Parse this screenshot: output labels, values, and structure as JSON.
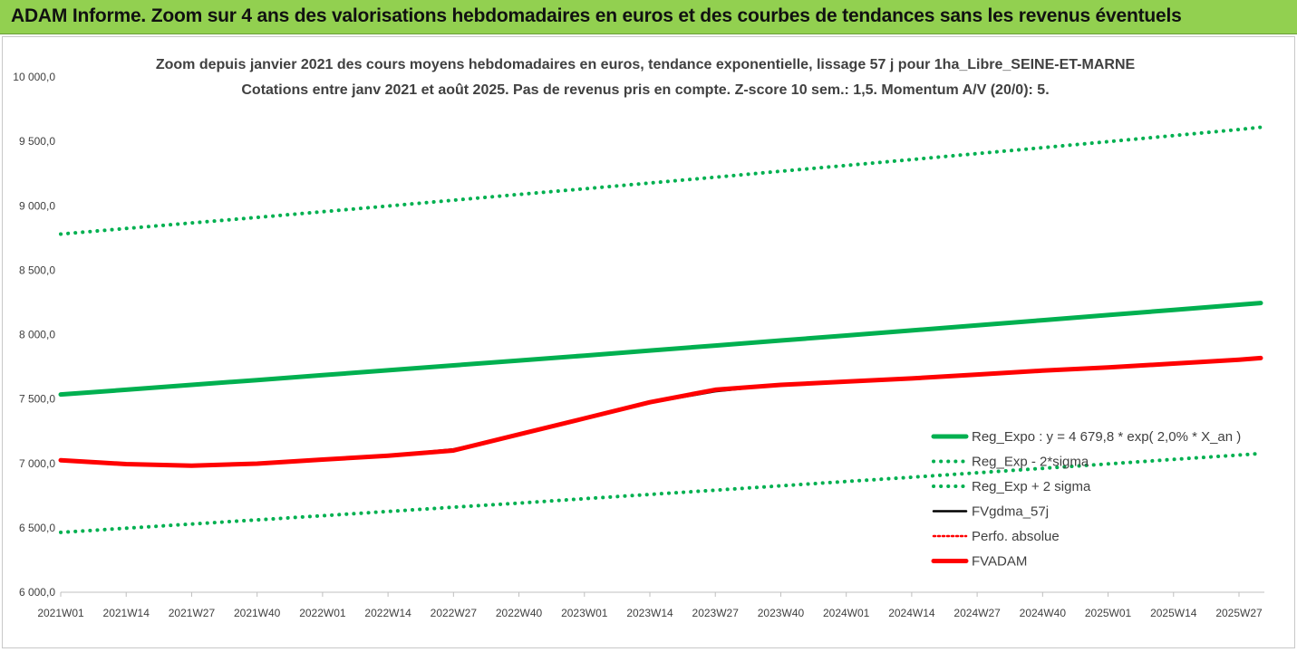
{
  "header": {
    "title": "ADAM Informe. Zoom sur 4 ans des valorisations hebdomadaires en euros et des courbes de tendances sans les revenus éventuels"
  },
  "chart_data": {
    "type": "line",
    "title": "Zoom depuis janvier 2021 des cours moyens hebdomadaires en euros, tendance exponentielle, lissage 57 j pour 1ha_Libre_SEINE-ET-MARNE",
    "subtitle": "Cotations entre janv 2021 et août 2025.  Pas de revenus pris en compte. Z-score 10 sem.: 1,5. Momentum A/V (20/0): 5.",
    "xlabel": "",
    "ylabel": "",
    "ylim": [
      6000,
      10000
    ],
    "y_ticks": [
      "10 000,0",
      "9 500,0",
      "9 000,0",
      "8 500,0",
      "8 000,0",
      "7 500,0",
      "7 000,0",
      "6 500,0",
      "6 000,0"
    ],
    "x_ticks": [
      "2021W01",
      "2021W14",
      "2021W27",
      "2021W40",
      "2022W01",
      "2022W14",
      "2022W27",
      "2022W40",
      "2023W01",
      "2023W14",
      "2023W27",
      "2023W40",
      "2024W01",
      "2024W14",
      "2024W27",
      "2024W40",
      "2025W01",
      "2025W14",
      "2025W27"
    ],
    "grid": false,
    "legend_position": "right",
    "series": [
      {
        "name": "Reg_Expo : y = 4 679,8 * exp( 2,0% *  X_an )",
        "color": "#00b050",
        "style": "solid-thick",
        "values": [
          7535,
          7572,
          7610,
          7647,
          7685,
          7723,
          7761,
          7799,
          7837,
          7876,
          7915,
          7954,
          7993,
          8032,
          8072,
          8112,
          8152,
          8192,
          8232,
          8245
        ]
      },
      {
        "name": "Reg_Exp - 2*sigma",
        "color": "#00b050",
        "style": "dotted",
        "values": [
          6465,
          6497,
          6529,
          6562,
          6594,
          6627,
          6660,
          6692,
          6726,
          6759,
          6792,
          6826,
          6860,
          6893,
          6927,
          6962,
          6996,
          7031,
          7065,
          7077
        ]
      },
      {
        "name": "Reg_Exp + 2 sigma",
        "color": "#00b050",
        "style": "dotted",
        "values": [
          8780,
          8824,
          8867,
          8910,
          8954,
          8998,
          9043,
          9088,
          9132,
          9177,
          9222,
          9268,
          9313,
          9359,
          9405,
          9451,
          9498,
          9545,
          9592,
          9610
        ]
      },
      {
        "name": "FVgdma_57j",
        "color": "#000000",
        "style": "solid",
        "values": [
          7025,
          6998,
          6988,
          6998,
          7030,
          7062,
          7110,
          7225,
          7350,
          7470,
          7560,
          7610,
          7635,
          7660,
          7690,
          7720,
          7745,
          7775,
          7805,
          7818
        ]
      },
      {
        "name": "Perfo. absolue",
        "color": "#ff0000",
        "style": "dotted",
        "values": [
          7025,
          6995,
          6983,
          6998,
          7030,
          7060,
          7100,
          7225,
          7350,
          7475,
          7572,
          7610,
          7635,
          7660,
          7690,
          7720,
          7745,
          7775,
          7805,
          7818
        ]
      },
      {
        "name": "FVADAM",
        "color": "#ff0000",
        "style": "solid-thick",
        "values": [
          7025,
          6995,
          6983,
          6998,
          7030,
          7060,
          7100,
          7225,
          7350,
          7475,
          7572,
          7610,
          7635,
          7660,
          7690,
          7720,
          7745,
          7775,
          7805,
          7818
        ]
      }
    ]
  }
}
